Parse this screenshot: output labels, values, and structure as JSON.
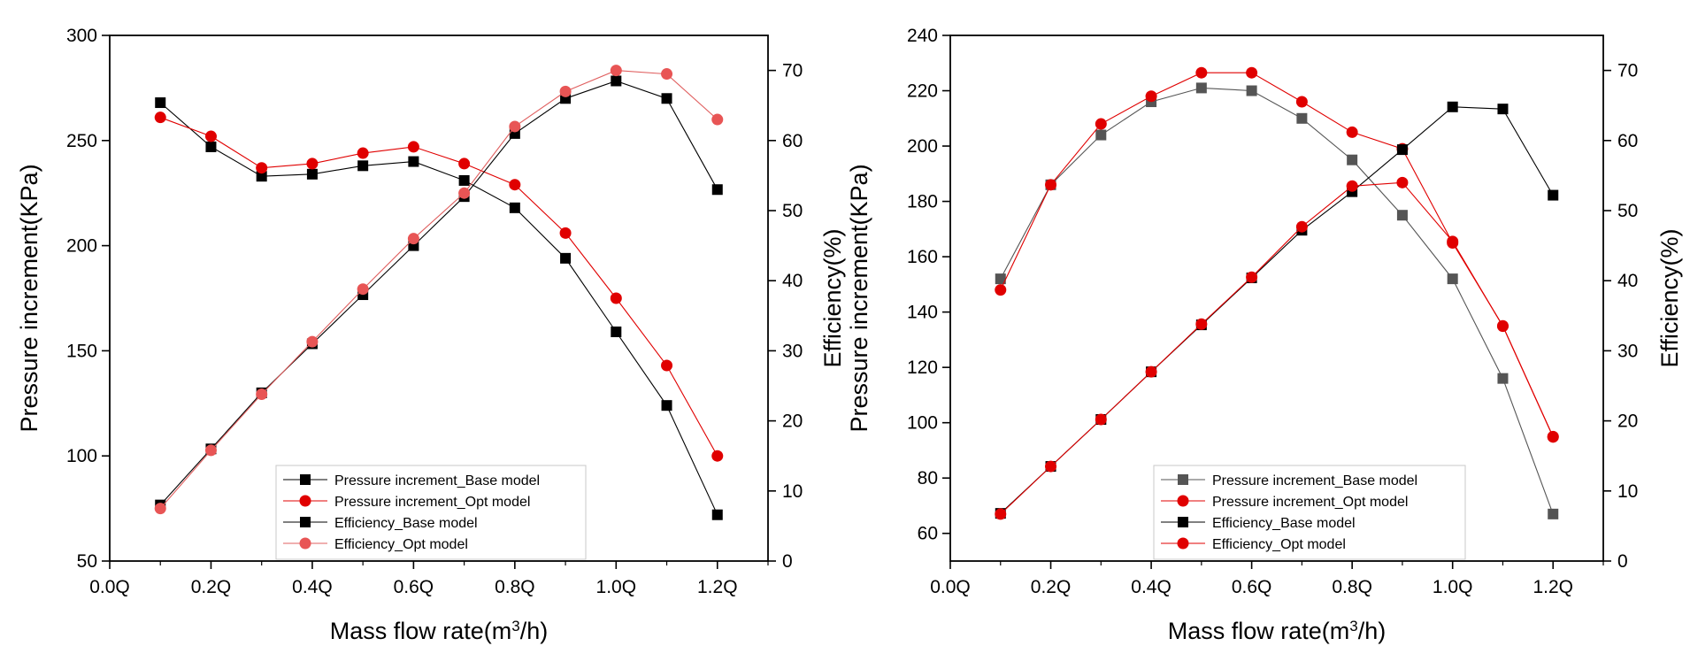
{
  "chart_data": [
    {
      "type": "line",
      "xlabel": "Mass flow rate(m",
      "xlabel_sup": "3",
      "xlabel_tail": "/h)",
      "ylabel_left": "Pressure increment(KPa)",
      "ylabel_right": "Efficiency(%)",
      "xlim": [
        0.0,
        1.3
      ],
      "ylim_left": [
        50,
        300
      ],
      "ylim_right": [
        0,
        75
      ],
      "x_ticks": [
        0.0,
        0.2,
        0.4,
        0.6,
        0.8,
        1.0,
        1.2
      ],
      "x_tick_labels": [
        "0.0Q",
        "0.2Q",
        "0.4Q",
        "0.6Q",
        "0.8Q",
        "1.0Q",
        "1.2Q"
      ],
      "y_left_ticks": [
        50,
        100,
        150,
        200,
        250,
        300
      ],
      "y_left_tick_labels": [
        "50",
        "100",
        "150",
        "200",
        "250",
        "300"
      ],
      "y_right_ticks": [
        0,
        10,
        20,
        30,
        40,
        50,
        60,
        70
      ],
      "y_right_tick_labels": [
        "0",
        "10",
        "20",
        "30",
        "40",
        "50",
        "60",
        "70"
      ],
      "x": [
        0.1,
        0.2,
        0.3,
        0.4,
        0.5,
        0.6,
        0.7,
        0.8,
        0.9,
        1.0,
        1.1,
        1.2
      ],
      "legend_position": "bottom-center",
      "series": [
        {
          "name": "Pressure increment_Base model",
          "axis": "left",
          "marker": "square",
          "color": "#000000",
          "line_color": "#000000",
          "values": [
            268,
            247,
            233,
            234,
            238,
            240,
            231,
            218,
            194,
            159,
            124,
            72
          ]
        },
        {
          "name": "Pressure increment_Opt model",
          "axis": "left",
          "marker": "circle",
          "color": "#e00000",
          "line_color": "#e00000",
          "values": [
            261,
            252,
            237,
            239,
            244,
            247,
            239,
            229,
            206,
            175,
            143,
            100
          ]
        },
        {
          "name": "Efficiency_Base model",
          "axis": "right",
          "marker": "square",
          "color": "#000000",
          "line_color": "#000000",
          "values": [
            8,
            16,
            24,
            31,
            38,
            45,
            52,
            61,
            66,
            68.5,
            66,
            53
          ]
        },
        {
          "name": "Efficiency_Opt model",
          "axis": "right",
          "marker": "circle",
          "color": "#e85555",
          "line_color": "#e06060",
          "values": [
            7.5,
            15.8,
            23.8,
            31.3,
            38.8,
            46,
            52.5,
            62,
            67,
            70,
            69.5,
            63
          ]
        }
      ]
    },
    {
      "type": "line",
      "xlabel": "Mass flow rate(m",
      "xlabel_sup": "3",
      "xlabel_tail": "/h)",
      "ylabel_left": "Pressure increment(KPa)",
      "ylabel_right": "Efficiency(%)",
      "xlim": [
        0.0,
        1.3
      ],
      "ylim_left": [
        50,
        240
      ],
      "ylim_right": [
        0,
        75
      ],
      "x_ticks": [
        0.0,
        0.2,
        0.4,
        0.6,
        0.8,
        1.0,
        1.2
      ],
      "x_tick_labels": [
        "0.0Q",
        "0.2Q",
        "0.4Q",
        "0.6Q",
        "0.8Q",
        "1.0Q",
        "1.2Q"
      ],
      "y_left_ticks": [
        60,
        80,
        100,
        120,
        140,
        160,
        180,
        200,
        220,
        240
      ],
      "y_left_tick_labels": [
        "60",
        "80",
        "100",
        "120",
        "140",
        "160",
        "180",
        "200",
        "220",
        "240"
      ],
      "y_right_ticks": [
        0,
        10,
        20,
        30,
        40,
        50,
        60,
        70
      ],
      "y_right_tick_labels": [
        "0",
        "10",
        "20",
        "30",
        "40",
        "50",
        "60",
        "70"
      ],
      "x": [
        0.1,
        0.2,
        0.3,
        0.4,
        0.5,
        0.6,
        0.7,
        0.8,
        0.9,
        1.0,
        1.1,
        1.2
      ],
      "legend_position": "bottom-center",
      "series": [
        {
          "name": "Pressure increment_Base model",
          "axis": "left",
          "marker": "square",
          "color": "#555555",
          "line_color": "#555555",
          "values": [
            152,
            186,
            204,
            216,
            221,
            220,
            210,
            195,
            175,
            152,
            116,
            67
          ]
        },
        {
          "name": "Pressure increment_Opt model",
          "axis": "left",
          "marker": "circle",
          "color": "#e00000",
          "line_color": "#e00000",
          "values": [
            148,
            186,
            208,
            218,
            226.5,
            226.5,
            216,
            205,
            199,
            165,
            135,
            95
          ]
        },
        {
          "name": "Efficiency_Base model",
          "axis": "right",
          "marker": "square",
          "color": "#000000",
          "line_color": "#000000",
          "values": [
            6.8,
            13.5,
            20.2,
            27,
            33.7,
            40.4,
            47.2,
            52.7,
            58.7,
            64.8,
            64.5,
            52.2
          ]
        },
        {
          "name": "Efficiency_Opt model",
          "axis": "right",
          "marker": "circle",
          "color": "#e00000",
          "line_color": "#e00000",
          "values": [
            6.7,
            13.5,
            20.2,
            27,
            33.8,
            40.5,
            47.7,
            53.5,
            54,
            45.6,
            33.5,
            17.7
          ]
        }
      ]
    }
  ]
}
